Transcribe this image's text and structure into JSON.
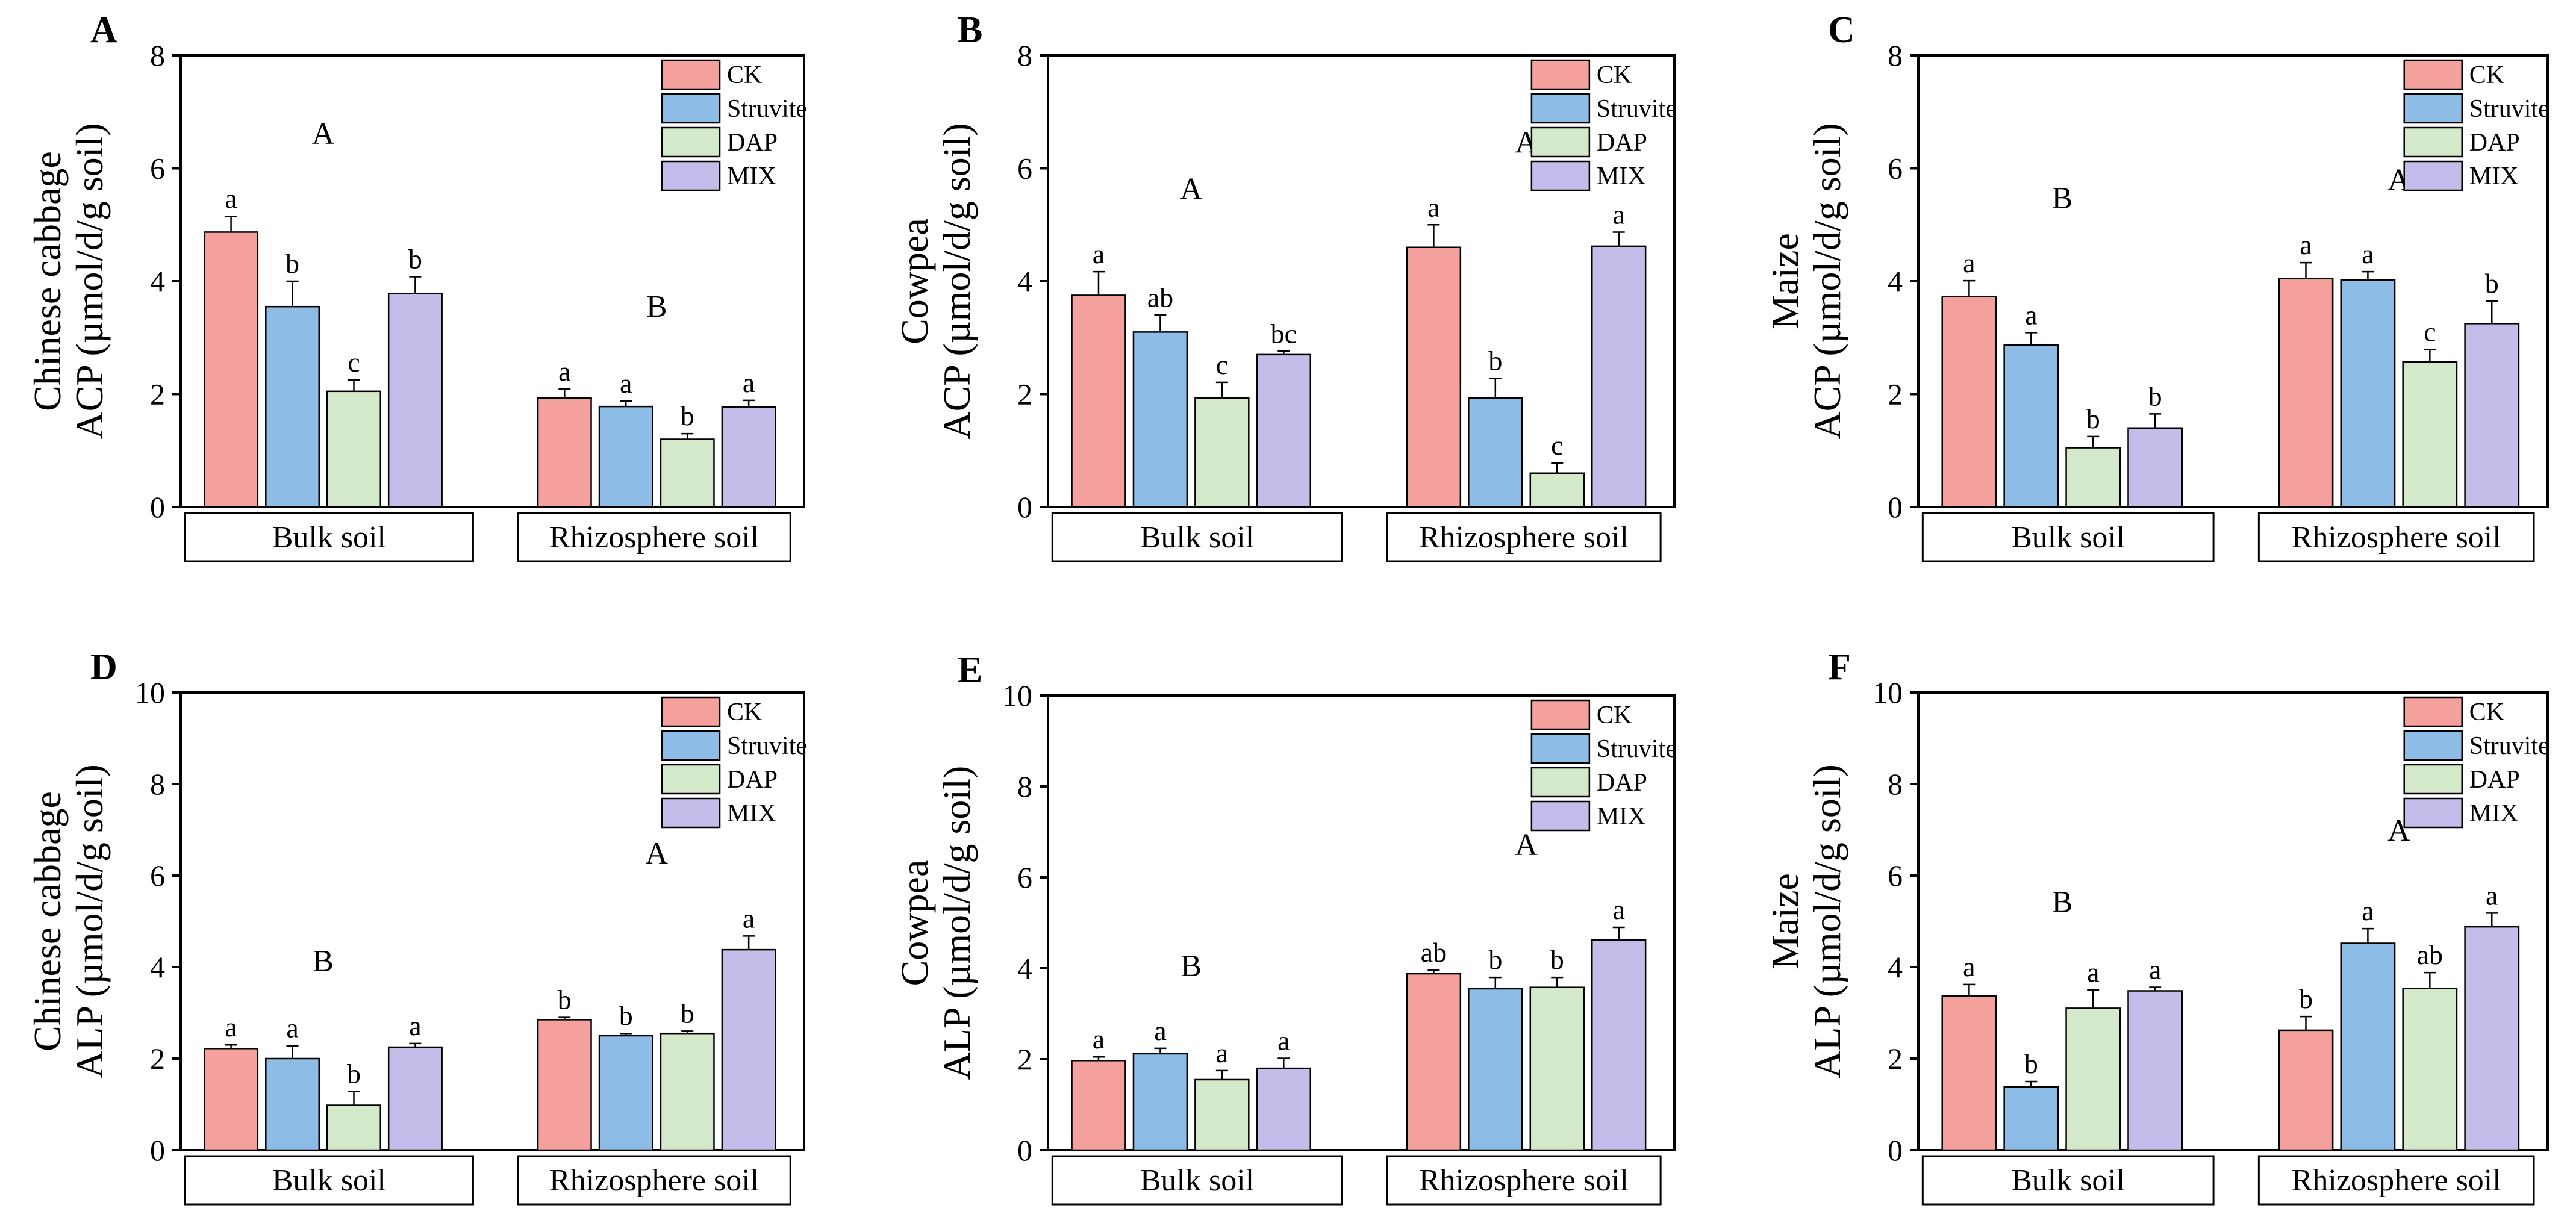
{
  "colors": {
    "CK": "#f4a09c",
    "Struvite": "#8dbde6",
    "DAP": "#d4e9c9",
    "MIX": "#c4bce9",
    "frame": "#000000"
  },
  "legend": [
    "CK",
    "Struvite",
    "DAP",
    "MIX"
  ],
  "groups": [
    "Bulk soil",
    "Rhizosphere soil"
  ],
  "chart_data": [
    {
      "type": "bar",
      "panel": "A",
      "ylabel": [
        "Chinese cabbage",
        "ACP (µmol/d/g soil)"
      ],
      "ylim": [
        0,
        8
      ],
      "yticks": [
        "0",
        "2",
        "4",
        "6",
        "8"
      ],
      "categories": [
        "Bulk soil",
        "Rhizosphere soil"
      ],
      "group_letters": [
        "A",
        "B"
      ],
      "series": [
        {
          "name": "CK",
          "values": [
            4.87,
            1.93
          ],
          "errors": [
            0.28,
            0.16
          ],
          "letters": [
            "a",
            "a"
          ]
        },
        {
          "name": "Struvite",
          "values": [
            3.55,
            1.78
          ],
          "errors": [
            0.45,
            0.1
          ],
          "letters": [
            "b",
            "a"
          ]
        },
        {
          "name": "DAP",
          "values": [
            2.05,
            1.2
          ],
          "errors": [
            0.2,
            0.1
          ],
          "letters": [
            "c",
            "b"
          ]
        },
        {
          "name": "MIX",
          "values": [
            3.78,
            1.77
          ],
          "errors": [
            0.3,
            0.12
          ],
          "letters": [
            "b",
            "a"
          ]
        }
      ]
    },
    {
      "type": "bar",
      "panel": "B",
      "ylabel": [
        "Cowpea",
        "ACP (µmol/d/g soil)"
      ],
      "ylim": [
        0,
        8
      ],
      "yticks": [
        "0",
        "2",
        "4",
        "6",
        "8"
      ],
      "categories": [
        "Bulk soil",
        "Rhizosphere soil"
      ],
      "group_letters": [
        "A",
        "A"
      ],
      "series": [
        {
          "name": "CK",
          "values": [
            3.75,
            4.6
          ],
          "errors": [
            0.42,
            0.4
          ],
          "letters": [
            "a",
            "a"
          ]
        },
        {
          "name": "Struvite",
          "values": [
            3.1,
            1.93
          ],
          "errors": [
            0.3,
            0.35
          ],
          "letters": [
            "ab",
            "b"
          ]
        },
        {
          "name": "DAP",
          "values": [
            1.93,
            0.6
          ],
          "errors": [
            0.28,
            0.18
          ],
          "letters": [
            "c",
            "c"
          ]
        },
        {
          "name": "MIX",
          "values": [
            2.7,
            4.62
          ],
          "errors": [
            0.06,
            0.25
          ],
          "letters": [
            "bc",
            "a"
          ]
        }
      ]
    },
    {
      "type": "bar",
      "panel": "C",
      "ylabel": [
        "Maize",
        "ACP (µmol/d/g soil)"
      ],
      "ylim": [
        0,
        8
      ],
      "yticks": [
        "0",
        "2",
        "4",
        "6",
        "8"
      ],
      "categories": [
        "Bulk soil",
        "Rhizosphere soil"
      ],
      "group_letters": [
        "B",
        "A"
      ],
      "series": [
        {
          "name": "CK",
          "values": [
            3.73,
            4.05
          ],
          "errors": [
            0.28,
            0.28
          ],
          "letters": [
            "a",
            "a"
          ]
        },
        {
          "name": "Struvite",
          "values": [
            2.87,
            4.02
          ],
          "errors": [
            0.22,
            0.15
          ],
          "letters": [
            "a",
            "a"
          ]
        },
        {
          "name": "DAP",
          "values": [
            1.05,
            2.57
          ],
          "errors": [
            0.2,
            0.22
          ],
          "letters": [
            "b",
            "c"
          ]
        },
        {
          "name": "MIX",
          "values": [
            1.4,
            3.25
          ],
          "errors": [
            0.25,
            0.4
          ],
          "letters": [
            "b",
            "b"
          ]
        }
      ]
    },
    {
      "type": "bar",
      "panel": "D",
      "ylabel": [
        "Chinese cabbage",
        "ALP (µmol/d/g soil)"
      ],
      "ylim": [
        0,
        10
      ],
      "yticks": [
        "0",
        "2",
        "4",
        "6",
        "8",
        "10"
      ],
      "categories": [
        "Bulk soil",
        "Rhizosphere soil"
      ],
      "group_letters": [
        "B",
        "A"
      ],
      "series": [
        {
          "name": "CK",
          "values": [
            2.22,
            2.85
          ],
          "errors": [
            0.08,
            0.05
          ],
          "letters": [
            "a",
            "b"
          ]
        },
        {
          "name": "Struvite",
          "values": [
            2.0,
            2.5
          ],
          "errors": [
            0.28,
            0.05
          ],
          "letters": [
            "a",
            "b"
          ]
        },
        {
          "name": "DAP",
          "values": [
            0.98,
            2.55
          ],
          "errors": [
            0.3,
            0.05
          ],
          "letters": [
            "b",
            "b"
          ]
        },
        {
          "name": "MIX",
          "values": [
            2.25,
            4.38
          ],
          "errors": [
            0.08,
            0.3
          ],
          "letters": [
            "a",
            "a"
          ]
        }
      ]
    },
    {
      "type": "bar",
      "panel": "E",
      "ylabel": [
        "Cowpea",
        "ALP (µmol/d/g soil)"
      ],
      "ylim": [
        0,
        10
      ],
      "yticks": [
        "0",
        "2",
        "4",
        "6",
        "8",
        "10"
      ],
      "categories": [
        "Bulk soil",
        "Rhizosphere soil"
      ],
      "group_letters": [
        "B",
        "A"
      ],
      "series": [
        {
          "name": "CK",
          "values": [
            1.97,
            3.88
          ],
          "errors": [
            0.08,
            0.08
          ],
          "letters": [
            "a",
            "ab"
          ]
        },
        {
          "name": "Struvite",
          "values": [
            2.12,
            3.55
          ],
          "errors": [
            0.12,
            0.25
          ],
          "letters": [
            "a",
            "b"
          ]
        },
        {
          "name": "DAP",
          "values": [
            1.55,
            3.58
          ],
          "errors": [
            0.2,
            0.22
          ],
          "letters": [
            "a",
            "b"
          ]
        },
        {
          "name": "MIX",
          "values": [
            1.8,
            4.62
          ],
          "errors": [
            0.22,
            0.28
          ],
          "letters": [
            "a",
            "a"
          ]
        }
      ]
    },
    {
      "type": "bar",
      "panel": "F",
      "ylabel": [
        "Maize",
        "ALP (µmol/d/g soil)"
      ],
      "ylim": [
        0,
        10
      ],
      "yticks": [
        "0",
        "2",
        "4",
        "6",
        "8",
        "10"
      ],
      "categories": [
        "Bulk soil",
        "Rhizosphere soil"
      ],
      "group_letters": [
        "B",
        "A"
      ],
      "series": [
        {
          "name": "CK",
          "values": [
            3.37,
            2.62
          ],
          "errors": [
            0.25,
            0.3
          ],
          "letters": [
            "a",
            "b"
          ]
        },
        {
          "name": "Struvite",
          "values": [
            1.38,
            4.52
          ],
          "errors": [
            0.12,
            0.32
          ],
          "letters": [
            "b",
            "a"
          ]
        },
        {
          "name": "DAP",
          "values": [
            3.1,
            3.53
          ],
          "errors": [
            0.4,
            0.35
          ],
          "letters": [
            "a",
            "ab"
          ]
        },
        {
          "name": "MIX",
          "values": [
            3.48,
            4.88
          ],
          "errors": [
            0.08,
            0.3
          ],
          "letters": [
            "a",
            "a"
          ]
        }
      ]
    }
  ]
}
